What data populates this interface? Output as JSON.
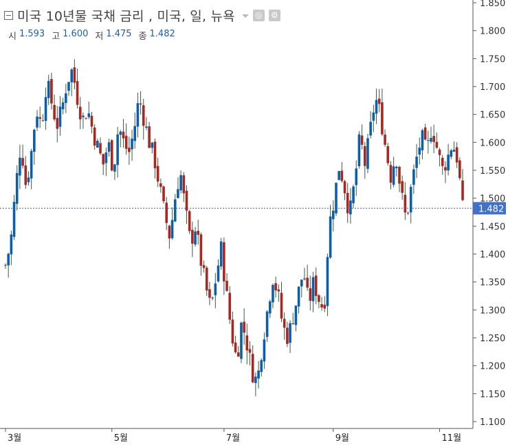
{
  "header": {
    "title": "미국 10년물 국채 금리 , 미국, 일, 뉴욕",
    "ohlc": [
      {
        "key": "시",
        "value": "1.593"
      },
      {
        "key": "고",
        "value": "1.600"
      },
      {
        "key": "저",
        "value": "1.475"
      },
      {
        "key": "종",
        "value": "1.482"
      }
    ]
  },
  "colors": {
    "up": "#0b5fa8",
    "down": "#a82720",
    "wick": "#3b5a45",
    "last_line": "#2a5ea8",
    "last_tag": "#3f72c8"
  },
  "chart_data": {
    "type": "candlestick",
    "title": "미국 10년물 국채 금리 , 미국, 일, 뉴욕",
    "ylim": [
      1.1,
      1.85
    ],
    "y_ticks": [
      "1.100",
      "1.150",
      "1.200",
      "1.250",
      "1.300",
      "1.350",
      "1.400",
      "1.450",
      "1.500",
      "1.550",
      "1.600",
      "1.650",
      "1.700",
      "1.750",
      "1.800",
      "1.850"
    ],
    "x_ticks": [
      {
        "label": "3월",
        "index": 0
      },
      {
        "label": "5월",
        "index": 37
      },
      {
        "label": "7월",
        "index": 76
      },
      {
        "label": "9월",
        "index": 114
      },
      {
        "label": "11월",
        "index": 151
      }
    ],
    "last_value": "1.482",
    "price_path": [
      1.38,
      1.42,
      1.52,
      1.6,
      1.52,
      1.58,
      1.66,
      1.63,
      1.71,
      1.67,
      1.63,
      1.66,
      1.71,
      1.73,
      1.68,
      1.64,
      1.66,
      1.62,
      1.59,
      1.56,
      1.6,
      1.55,
      1.63,
      1.6,
      1.58,
      1.62,
      1.68,
      1.64,
      1.6,
      1.57,
      1.52,
      1.47,
      1.43,
      1.5,
      1.55,
      1.48,
      1.42,
      1.45,
      1.39,
      1.34,
      1.3,
      1.36,
      1.41,
      1.33,
      1.26,
      1.21,
      1.28,
      1.24,
      1.19,
      1.17,
      1.24,
      1.3,
      1.36,
      1.33,
      1.27,
      1.25,
      1.29,
      1.33,
      1.37,
      1.31,
      1.35,
      1.32,
      1.3,
      1.45,
      1.5,
      1.56,
      1.52,
      1.47,
      1.53,
      1.61,
      1.56,
      1.62,
      1.68,
      1.65,
      1.59,
      1.54,
      1.58,
      1.51,
      1.46,
      1.52,
      1.57,
      1.61,
      1.58,
      1.63,
      1.59,
      1.55,
      1.57,
      1.6,
      1.57,
      1.48
    ]
  }
}
